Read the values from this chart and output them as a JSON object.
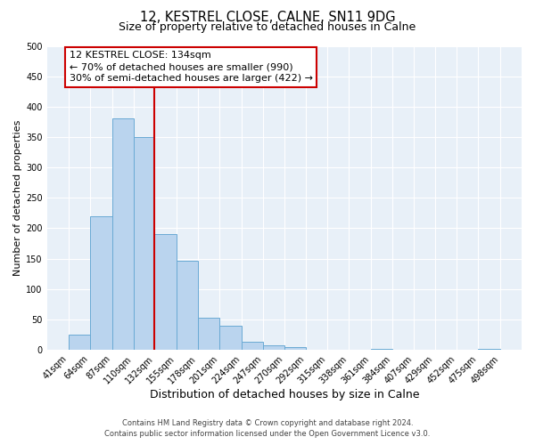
{
  "title": "12, KESTREL CLOSE, CALNE, SN11 9DG",
  "subtitle": "Size of property relative to detached houses in Calne",
  "xlabel": "Distribution of detached houses by size in Calne",
  "ylabel": "Number of detached properties",
  "bar_edges": [
    41,
    64,
    87,
    110,
    132,
    155,
    178,
    201,
    224,
    247,
    270,
    292,
    315,
    338,
    361,
    384,
    407,
    429,
    452,
    475,
    498
  ],
  "bar_heights": [
    25,
    220,
    380,
    350,
    190,
    147,
    53,
    40,
    13,
    7,
    5,
    0,
    0,
    0,
    2,
    0,
    0,
    0,
    0,
    2
  ],
  "bar_color": "#bad4ee",
  "bar_edge_color": "#6aaad4",
  "vline_x": 132,
  "vline_color": "#cc0000",
  "annotation_text_line1": "12 KESTREL CLOSE: 134sqm",
  "annotation_text_line2": "← 70% of detached houses are smaller (990)",
  "annotation_text_line3": "30% of semi-detached houses are larger (422) →",
  "annotation_box_color": "#cc0000",
  "ylim": [
    0,
    500
  ],
  "yticks": [
    0,
    50,
    100,
    150,
    200,
    250,
    300,
    350,
    400,
    450,
    500
  ],
  "bg_color": "#e8f0f8",
  "grid_color": "#ffffff",
  "footer_line1": "Contains HM Land Registry data © Crown copyright and database right 2024.",
  "footer_line2": "Contains public sector information licensed under the Open Government Licence v3.0.",
  "title_fontsize": 10.5,
  "subtitle_fontsize": 9,
  "xlabel_fontsize": 9,
  "ylabel_fontsize": 8,
  "tick_fontsize": 7,
  "annotation_fontsize": 8,
  "footer_fontsize": 6
}
